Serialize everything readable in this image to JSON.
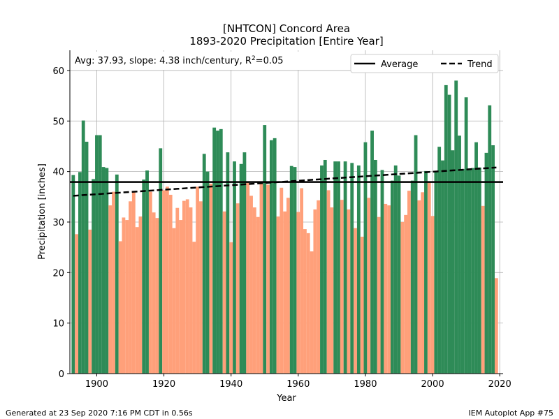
{
  "chart_data": {
    "type": "bar",
    "title": "[NHTCON] Concord Area",
    "subtitle": "1893-2020 Precipitation [Entire Year]",
    "xlabel": "Year",
    "ylabel": "Precipitation [inches]",
    "xlim": [
      1892,
      2021
    ],
    "ylim": [
      0,
      64
    ],
    "xticks": [
      1900,
      1920,
      1940,
      1960,
      1980,
      2000,
      2020
    ],
    "yticks": [
      0,
      10,
      20,
      30,
      40,
      50,
      60
    ],
    "grid": true,
    "average": 37.93,
    "trend_start": 35.2,
    "trend_end": 40.8,
    "annotation": {
      "prefix": "Avg: 37.93, slope: 4.38 inch/century, R",
      "sup": "2",
      "suffix": "=0.05"
    },
    "legend": {
      "placement": "top-right",
      "items": [
        {
          "label": "Average",
          "style": "solid"
        },
        {
          "label": "Trend",
          "style": "dashed"
        }
      ]
    },
    "colors": {
      "above": "#2e8b57",
      "below": "#ffa07a",
      "line": "#000000",
      "grid": "#b0b0b0"
    },
    "series": [
      {
        "start_year": 1893,
        "values": [
          39.3,
          27.6,
          39.9,
          50.1,
          45.9,
          28.5,
          38.5,
          47.2,
          47.2,
          40.9,
          40.7,
          33.3,
          36.0,
          39.4,
          26.2,
          30.9,
          30.4,
          34.1,
          36.1,
          29.0,
          31.1,
          38.4,
          40.2,
          36.0,
          31.9,
          30.8,
          44.6,
          36.3,
          37.0,
          35.4,
          28.8,
          32.8,
          30.4,
          34.2,
          34.5,
          32.9,
          26.1,
          37.0,
          34.1,
          43.5,
          40.0,
          37.6,
          48.7,
          48.1,
          48.4,
          32.1,
          43.8,
          26.0,
          42.0,
          33.7,
          41.5,
          43.8,
          37.9,
          35.2,
          32.9,
          31.0,
          37.7,
          49.2,
          37.4,
          46.2,
          46.6,
          31.1,
          36.8,
          32.1,
          34.8,
          41.1,
          40.9,
          32.0,
          36.7,
          28.6,
          27.8,
          24.2,
          32.5,
          34.3,
          41.2,
          42.3,
          36.3,
          32.9,
          42.0,
          42.0,
          34.4,
          42.0,
          32.5,
          41.7,
          28.8,
          41.2,
          27.1,
          45.8,
          34.8,
          48.1,
          42.3,
          31.0,
          40.3,
          33.6,
          33.3,
          38.2,
          41.2,
          39.2,
          30.0,
          31.4,
          36.2,
          38.2,
          47.2,
          34.3,
          35.9,
          40.1,
          37.9,
          31.2,
          39.9,
          44.9,
          42.2,
          57.1,
          55.2,
          44.2,
          58.0,
          47.1,
          40.5,
          54.7,
          40.6,
          40.7,
          45.8,
          40.8,
          33.2,
          43.7,
          53.1,
          45.2,
          18.9
        ]
      }
    ]
  },
  "footer": {
    "left": "Generated at 23 Sep 2020 7:16 PM CDT in 0.56s",
    "right": "IEM Autoplot App #75"
  }
}
